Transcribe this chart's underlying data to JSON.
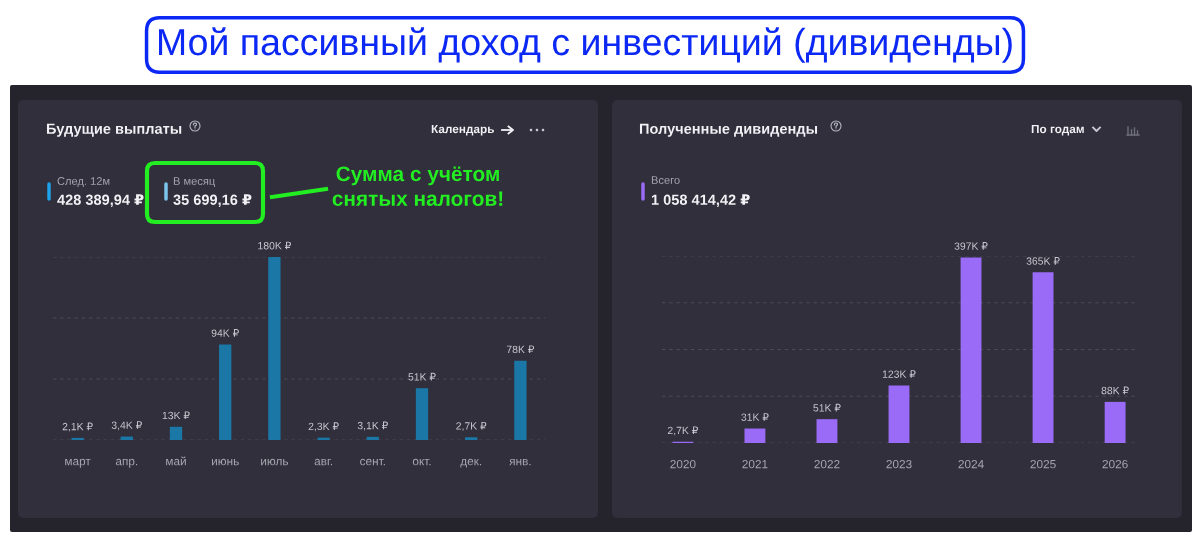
{
  "chart_data": [
    {
      "type": "bar",
      "title": "Будущие выплаты",
      "categories": [
        "март",
        "апр.",
        "май",
        "июнь",
        "июль",
        "авг.",
        "сент.",
        "окт.",
        "дек.",
        "янв."
      ],
      "values": [
        2100,
        3400,
        13000,
        94000,
        180000,
        2300,
        3100,
        51000,
        2700,
        78000
      ],
      "value_labels": [
        "2,1K ₽",
        "3,4K ₽",
        "13K ₽",
        "94K ₽",
        "180K ₽",
        "2,3K ₽",
        "3,1K ₽",
        "51K ₽",
        "2,7K ₽",
        "78K ₽"
      ],
      "color": "#1b77a6",
      "ylim": [
        0,
        180000
      ],
      "yticks": [
        {
          "value": 0,
          "label": null
        },
        {
          "value": 60000,
          "label": null
        },
        {
          "value": 120000,
          "label": null
        },
        {
          "value": 180000,
          "label": null
        }
      ],
      "grid": "y",
      "tick_labels": "x",
      "annotations": [
        "Мой пассивный доход с инвестиций (дивиденды)",
        "Календарь",
        "След. 12м",
        "428 389,94 ₽",
        "В месяц",
        "35 699,16 ₽",
        "Сумма с учётом\nснятых налогов!"
      ]
    },
    {
      "type": "bar",
      "title": "Полученные дивиденды",
      "categories": [
        "2020",
        "2021",
        "2022",
        "2023",
        "2024",
        "2025",
        "2026"
      ],
      "values": [
        2700,
        31000,
        51000,
        123000,
        397000,
        365000,
        88000
      ],
      "value_labels": [
        "2,7K ₽",
        "31K ₽",
        "51K ₽",
        "123K ₽",
        "397K ₽",
        "365K ₽",
        "88K ₽"
      ],
      "color": "#9a6bf6",
      "ylim": [
        0,
        400000
      ],
      "yticks": [
        {
          "value": 0,
          "label": null
        },
        {
          "value": 100000,
          "label": null
        },
        {
          "value": 200000,
          "label": null
        },
        {
          "value": 300000,
          "label": null
        },
        {
          "value": 400000,
          "label": null
        }
      ],
      "grid": "y",
      "tick_labels": "x",
      "annotations": [
        "По годам",
        "Всего",
        "1 058 414,42 ₽"
      ]
    }
  ]
}
